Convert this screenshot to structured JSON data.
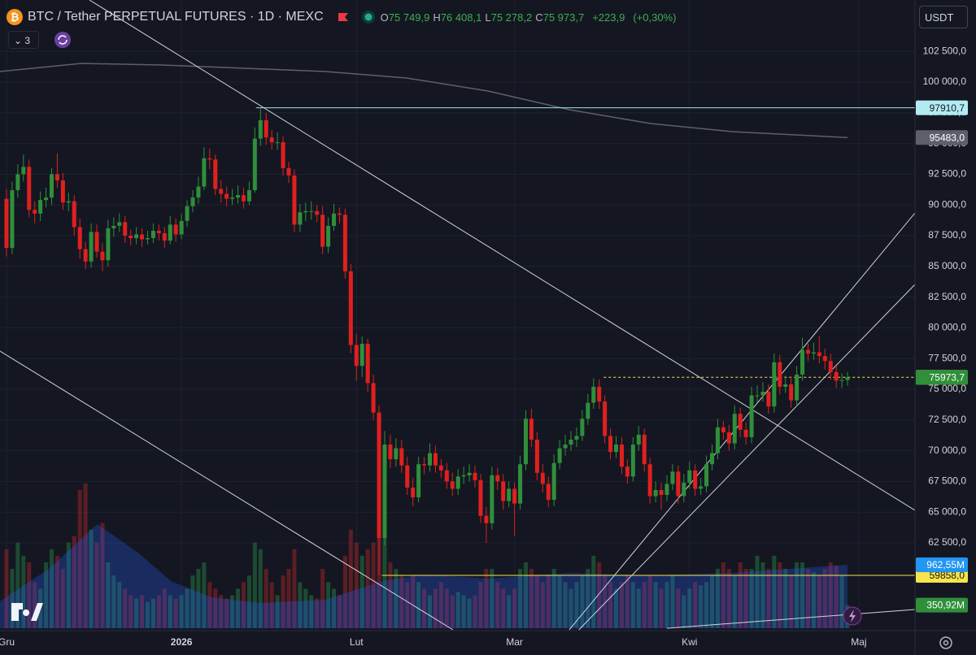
{
  "chart_data": {
    "type": "candlestick",
    "title": "BTC / Tether PERPETUAL FUTURES · 1D · MEXC",
    "legend_ohlc": [
      {
        "key": "O",
        "value": 75749.9,
        "label": "75 749,9"
      },
      {
        "key": "H",
        "value": 76408.1,
        "label": "76 408,1"
      },
      {
        "key": "L",
        "value": 75278.2,
        "label": "75 278,2"
      },
      {
        "key": "C",
        "value": 75973.7,
        "label": "75 973,7"
      }
    ],
    "change": {
      "value": 223.9,
      "label": "+223,9"
    },
    "change_pct": {
      "value": 0.3,
      "label": "(+0,30%)"
    },
    "currency": "USDT",
    "indicator_count": "3",
    "up_color": "#2f8f3a",
    "down_color": "#e0201f",
    "volume_up_color": "rgba(38,140,70,0.45)",
    "volume_down_color": "rgba(200,40,40,0.4)",
    "grid": true,
    "xlim": [
      -1.15,
      160.95
    ],
    "ylim": [
      55423,
      106680
    ],
    "vlim": [
      0,
      9543
    ],
    "xticks": [
      {
        "value": 0,
        "label": "Gru"
      },
      {
        "value": 31,
        "label": "2026"
      },
      {
        "value": 62,
        "label": "Lut"
      },
      {
        "value": 90,
        "label": "Mar"
      },
      {
        "value": 121,
        "label": "Kwi"
      },
      {
        "value": 151,
        "label": "Maj"
      }
    ],
    "yticks": [
      {
        "value": 62500,
        "label": "62 500,0"
      },
      {
        "value": 65000,
        "label": "65 000,0"
      },
      {
        "value": 67500,
        "label": "67 500,0"
      },
      {
        "value": 70000,
        "label": "70 000,0"
      },
      {
        "value": 72500,
        "label": "72 500,0"
      },
      {
        "value": 75000,
        "label": "75 000,0"
      },
      {
        "value": 77500,
        "label": "77 500,0"
      },
      {
        "value": 80000,
        "label": "80 000,0"
      },
      {
        "value": 82500,
        "label": "82 500,0"
      },
      {
        "value": 85000,
        "label": "85 000,0"
      },
      {
        "value": 87500,
        "label": "87 500,0"
      },
      {
        "value": 90000,
        "label": "90 000,0"
      },
      {
        "value": 92500,
        "label": "92 500,0"
      },
      {
        "value": 95000,
        "label": "95 000,0"
      },
      {
        "value": 97500,
        "label": "97 500,0"
      },
      {
        "value": 100000,
        "label": "100 000,0"
      },
      {
        "value": 102500,
        "label": "102 500,0"
      }
    ],
    "candles": [
      [
        90500,
        91300,
        85800,
        86500
      ],
      [
        86500,
        91900,
        86000,
        91200
      ],
      [
        91200,
        93300,
        90600,
        92500
      ],
      [
        92500,
        94100,
        91900,
        93100
      ],
      [
        93100,
        93700,
        89000,
        89600
      ],
      [
        89600,
        90300,
        88500,
        89300
      ],
      [
        89300,
        91100,
        88700,
        90400
      ],
      [
        90400,
        91400,
        89800,
        90600
      ],
      [
        90600,
        93000,
        90000,
        92500
      ],
      [
        92500,
        94200,
        91400,
        92000
      ],
      [
        92000,
        92600,
        89600,
        90200
      ],
      [
        90200,
        91000,
        89500,
        90300
      ],
      [
        90300,
        90800,
        87500,
        88200
      ],
      [
        88200,
        88900,
        85600,
        86400
      ],
      [
        86400,
        87000,
        84800,
        85400
      ],
      [
        85400,
        88500,
        84900,
        87800
      ],
      [
        87800,
        88400,
        85700,
        86200
      ],
      [
        86200,
        86900,
        84600,
        85500
      ],
      [
        85500,
        88800,
        85000,
        88100
      ],
      [
        88100,
        89000,
        87400,
        88300
      ],
      [
        88300,
        89300,
        87800,
        88600
      ],
      [
        88600,
        89100,
        86900,
        87500
      ],
      [
        87500,
        88000,
        86700,
        87300
      ],
      [
        87300,
        88200,
        86800,
        87600
      ],
      [
        87600,
        88100,
        86600,
        87200
      ],
      [
        87200,
        87900,
        86800,
        87300
      ],
      [
        87300,
        88500,
        86900,
        87900
      ],
      [
        87900,
        88400,
        87100,
        87700
      ],
      [
        87700,
        88200,
        86500,
        87100
      ],
      [
        87100,
        89100,
        86800,
        88400
      ],
      [
        88400,
        88900,
        87000,
        87600
      ],
      [
        87600,
        89300,
        87200,
        88700
      ],
      [
        88700,
        90400,
        88200,
        89900
      ],
      [
        89900,
        91200,
        89400,
        90600
      ],
      [
        90600,
        92300,
        90100,
        91500
      ],
      [
        91500,
        94700,
        91200,
        93800
      ],
      [
        93800,
        94600,
        92900,
        93700
      ],
      [
        93700,
        94100,
        90800,
        91300
      ],
      [
        91300,
        92000,
        90200,
        90900
      ],
      [
        90900,
        91500,
        89900,
        90500
      ],
      [
        90500,
        91300,
        90000,
        90600
      ],
      [
        90600,
        91600,
        90100,
        90800
      ],
      [
        90800,
        91400,
        89700,
        90300
      ],
      [
        90300,
        91900,
        90000,
        91200
      ],
      [
        91200,
        96300,
        91000,
        95400
      ],
      [
        95400,
        97900,
        94800,
        96900
      ],
      [
        96900,
        97500,
        94900,
        95500
      ],
      [
        95500,
        96100,
        94500,
        95100
      ],
      [
        95100,
        95900,
        94500,
        95100
      ],
      [
        95100,
        95600,
        92400,
        93000
      ],
      [
        93000,
        93500,
        91800,
        92400
      ],
      [
        92400,
        92900,
        87800,
        88400
      ],
      [
        88400,
        90100,
        87800,
        89400
      ],
      [
        89400,
        90200,
        88700,
        89500
      ],
      [
        89500,
        90300,
        88800,
        89500
      ],
      [
        89500,
        90000,
        88600,
        89200
      ],
      [
        89200,
        89900,
        86000,
        86600
      ],
      [
        86600,
        89000,
        86100,
        88300
      ],
      [
        88300,
        90100,
        87900,
        89300
      ],
      [
        89300,
        89800,
        88500,
        89200
      ],
      [
        89200,
        89700,
        84000,
        84600
      ],
      [
        84600,
        85200,
        77900,
        78600
      ],
      [
        78600,
        79500,
        75700,
        76900
      ],
      [
        76900,
        79300,
        76000,
        78700
      ],
      [
        78700,
        79100,
        74800,
        75500
      ],
      [
        75500,
        76200,
        72500,
        73100
      ],
      [
        73100,
        73700,
        59860,
        62900
      ],
      [
        62900,
        71600,
        62300,
        70500
      ],
      [
        70500,
        71300,
        68600,
        69300
      ],
      [
        69300,
        71000,
        68700,
        70200
      ],
      [
        70200,
        70900,
        68200,
        68800
      ],
      [
        68800,
        69500,
        66400,
        67000
      ],
      [
        67000,
        67800,
        65500,
        66200
      ],
      [
        66200,
        69500,
        65800,
        68900
      ],
      [
        68900,
        69500,
        68100,
        68800
      ],
      [
        68800,
        70600,
        68300,
        69800
      ],
      [
        69800,
        70400,
        68200,
        68800
      ],
      [
        68800,
        69300,
        67800,
        68400
      ],
      [
        68400,
        69000,
        66900,
        67500
      ],
      [
        67500,
        68200,
        66300,
        66900
      ],
      [
        66900,
        68500,
        66400,
        67900
      ],
      [
        67900,
        68700,
        67300,
        68000
      ],
      [
        68000,
        68900,
        67500,
        68200
      ],
      [
        68200,
        68800,
        67000,
        67600
      ],
      [
        67600,
        68100,
        64100,
        64700
      ],
      [
        64700,
        65400,
        62500,
        64100
      ],
      [
        64100,
        68700,
        63600,
        68000
      ],
      [
        68000,
        68600,
        66800,
        67500
      ],
      [
        67500,
        68100,
        65200,
        65900
      ],
      [
        65900,
        67500,
        65400,
        66900
      ],
      [
        66900,
        67400,
        63100,
        65700
      ],
      [
        65700,
        69600,
        65200,
        68900
      ],
      [
        68900,
        73300,
        68400,
        72600
      ],
      [
        72600,
        73400,
        70300,
        70900
      ],
      [
        70900,
        71500,
        67600,
        68200
      ],
      [
        68200,
        68900,
        66600,
        67300
      ],
      [
        67300,
        67900,
        65400,
        66000
      ],
      [
        66000,
        69700,
        65500,
        69000
      ],
      [
        69000,
        70900,
        68500,
        70200
      ],
      [
        70200,
        71300,
        69600,
        70500
      ],
      [
        70500,
        71600,
        70000,
        70900
      ],
      [
        70900,
        71900,
        70300,
        71200
      ],
      [
        71200,
        73300,
        70800,
        72600
      ],
      [
        72600,
        74600,
        72100,
        73900
      ],
      [
        73900,
        75900,
        73400,
        75200
      ],
      [
        75200,
        75800,
        73400,
        74000
      ],
      [
        74000,
        74500,
        70600,
        71200
      ],
      [
        71200,
        71800,
        69300,
        69900
      ],
      [
        69900,
        71200,
        69400,
        70500
      ],
      [
        70500,
        71100,
        68100,
        68700
      ],
      [
        68700,
        69300,
        67300,
        67900
      ],
      [
        67900,
        71100,
        67500,
        70500
      ],
      [
        70500,
        72000,
        70000,
        71300
      ],
      [
        71300,
        71800,
        68300,
        68900
      ],
      [
        68900,
        69400,
        65700,
        66300
      ],
      [
        66300,
        67500,
        65800,
        66800
      ],
      [
        66800,
        67400,
        65200,
        66400
      ],
      [
        66400,
        68000,
        65900,
        67300
      ],
      [
        67300,
        68900,
        66800,
        68300
      ],
      [
        68300,
        68800,
        65700,
        66300
      ],
      [
        66300,
        68100,
        65800,
        67400
      ],
      [
        67400,
        69100,
        66900,
        68400
      ],
      [
        68400,
        68900,
        66300,
        66900
      ],
      [
        66900,
        67800,
        66400,
        67100
      ],
      [
        67100,
        69600,
        66600,
        68900
      ],
      [
        68900,
        70500,
        68400,
        69800
      ],
      [
        69800,
        72600,
        69300,
        71900
      ],
      [
        71900,
        72400,
        70900,
        71500
      ],
      [
        71500,
        72100,
        70000,
        70600
      ],
      [
        70600,
        73700,
        70100,
        73000
      ],
      [
        73000,
        73500,
        71100,
        71700
      ],
      [
        71700,
        72300,
        70500,
        71100
      ],
      [
        71100,
        75200,
        70600,
        74500
      ],
      [
        74500,
        75300,
        73900,
        74500
      ],
      [
        74500,
        75600,
        74000,
        74800
      ],
      [
        74800,
        75400,
        73000,
        73600
      ],
      [
        73600,
        77900,
        73100,
        77200
      ],
      [
        77200,
        77800,
        74600,
        75200
      ],
      [
        75200,
        76100,
        74700,
        75400
      ],
      [
        75400,
        76000,
        73500,
        74100
      ],
      [
        74100,
        76900,
        73600,
        76200
      ],
      [
        76200,
        79200,
        75700,
        78200
      ],
      [
        78200,
        78700,
        77300,
        77900
      ],
      [
        77900,
        78800,
        77400,
        78000
      ],
      [
        78000,
        79300,
        77100,
        77700
      ],
      [
        77700,
        78300,
        76600,
        77300
      ],
      [
        77300,
        77900,
        75800,
        76400
      ],
      [
        76400,
        76900,
        75100,
        75700
      ],
      [
        75700,
        76300,
        75100,
        75749.9
      ],
      [
        75749.9,
        76408.1,
        75278.2,
        75973.7
      ]
    ],
    "volumes": [
      1200,
      900,
      1300,
      1100,
      1000,
      700,
      600,
      1000,
      1200,
      1100,
      900,
      1300,
      1400,
      2100,
      2200,
      1500,
      1300,
      1600,
      1000,
      800,
      700,
      600,
      500,
      450,
      500,
      400,
      450,
      500,
      600,
      500,
      450,
      500,
      600,
      800,
      900,
      1000,
      700,
      600,
      500,
      450,
      500,
      600,
      700,
      800,
      1300,
      1200,
      900,
      700,
      500,
      800,
      900,
      1200,
      700,
      600,
      500,
      450,
      900,
      700,
      600,
      500,
      1100,
      1500,
      1300,
      1100,
      1200,
      1300,
      1900,
      1500,
      1000,
      900,
      800,
      700,
      800,
      700,
      600,
      500,
      600,
      700,
      600,
      500,
      550,
      500,
      450,
      500,
      700,
      900,
      900,
      700,
      600,
      500,
      600,
      900,
      1000,
      900,
      800,
      700,
      800,
      900,
      800,
      700,
      600,
      700,
      800,
      900,
      1100,
      1000,
      800,
      700,
      600,
      700,
      800,
      700,
      600,
      700,
      800,
      700,
      600,
      700,
      800,
      600,
      500,
      600,
      700,
      650,
      700,
      800,
      900,
      1000,
      900,
      800,
      1000,
      900,
      900,
      1100,
      1000,
      900,
      1100,
      1000,
      900,
      800,
      1000,
      1000,
      900,
      850,
      800,
      900,
      1000,
      950,
      800,
      351
    ],
    "volume_ma": {
      "color": "#2962ff",
      "x": [
        -1.15,
        7.5,
        16.1,
        23.3,
        29.1,
        36.3,
        44.9,
        56.5,
        66.6,
        73.8,
        85.3,
        99.7,
        114.1,
        128.5,
        149
      ],
      "values": [
        407,
        901,
        1580,
        1148,
        716,
        469,
        383,
        432,
        716,
        815,
        753,
        840,
        802,
        840,
        962.55
      ]
    },
    "ma_line": {
      "color": "#5d606b",
      "x": [
        -1.15,
        13.3,
        27.7,
        42.1,
        56.5,
        70.9,
        85.3,
        99.7,
        114.1,
        128.5,
        149
      ],
      "values": [
        100860,
        101520,
        101390,
        101124,
        100860,
        100330,
        99272,
        97751,
        96627,
        95966,
        95483
      ]
    },
    "drawings": [
      {
        "color": "#d1d4dc",
        "points": [
          [
            14.7,
            106680
          ],
          [
            160.95,
            65146
          ]
        ]
      },
      {
        "color": "#d1d4dc",
        "points": [
          [
            -1.15,
            78109
          ],
          [
            79.1,
            55423
          ]
        ]
      },
      {
        "color": "#d1d4dc",
        "points": [
          [
            99.7,
            55423
          ],
          [
            160.95,
            89351
          ]
        ]
      },
      {
        "color": "#d1d4dc",
        "points": [
          [
            101.4,
            55423
          ],
          [
            160.95,
            83532
          ]
        ]
      },
      {
        "color": "#d1d4dc",
        "points": [
          [
            117,
            55550
          ],
          [
            160.95,
            57078
          ]
        ]
      }
    ],
    "levels": [
      {
        "value": 97910.7,
        "from": 44.2,
        "color": "#9fe3ec",
        "dash": false
      },
      {
        "value": 59858.0,
        "from": 66.5,
        "color": "#f5e44a",
        "dash": false
      },
      {
        "value": 75978.8,
        "from": 105.8,
        "color": "#f5e44a",
        "dash": true
      }
    ],
    "price_labels": [
      {
        "value": 97910.7,
        "label": "97910,7",
        "bg": "#b2ebf2",
        "fg": "#131722"
      },
      {
        "value": 95483.0,
        "label": "95483,0",
        "bg": "#5d606b",
        "fg": "#ffffff"
      },
      {
        "value": 75978.8,
        "label": "75978,8",
        "bg": "#f5e44a",
        "fg": "#131722"
      },
      {
        "value": 75973.7,
        "label": "75973,7",
        "bg": "#2f8f3a",
        "fg": "#ffffff"
      },
      {
        "value": 59858.0,
        "label": "59858,0",
        "bg": "#f5e44a",
        "fg": "#131722"
      }
    ],
    "volume_labels": [
      {
        "value": 962.55,
        "label": "962,55M",
        "bg": "#2196f3",
        "fg": "#ffffff"
      },
      {
        "value": 350.92,
        "label": "350,92M",
        "bg": "#2f8f3a",
        "fg": "#ffffff"
      }
    ]
  }
}
